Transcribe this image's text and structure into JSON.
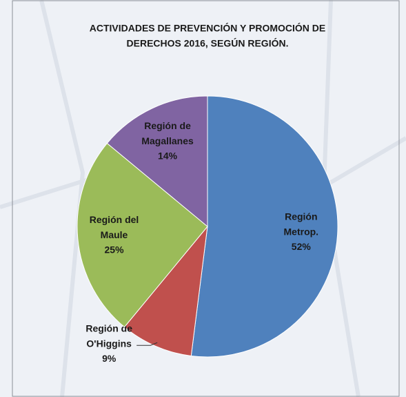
{
  "chart_data": {
    "type": "pie",
    "title": [
      "ACTIVIDADES DE PREVENCIÓN Y PROMOCIÓN DE",
      "DERECHOS 2016, SEGÚN REGIÓN."
    ],
    "categories": [
      "Región Metrop.",
      "Región de O'Higgins",
      "Región del Maule",
      "Región de Magallanes"
    ],
    "values": [
      52,
      9,
      25,
      14
    ],
    "value_labels": [
      "52%",
      "9%",
      "25%",
      "14%"
    ],
    "colors": [
      "#4f81bd",
      "#c0504d",
      "#9bbb59",
      "#8064a2"
    ]
  }
}
